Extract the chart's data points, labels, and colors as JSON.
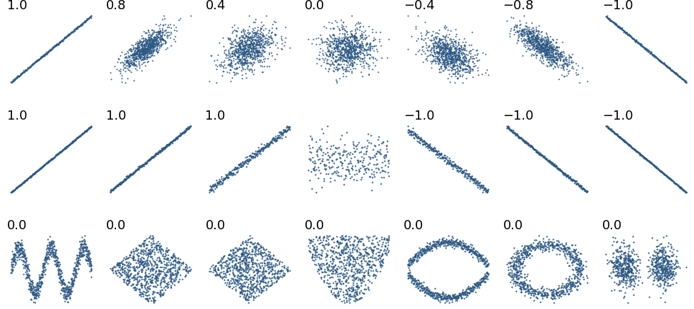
{
  "row1_corrs": [
    1.0,
    0.8,
    0.4,
    0.0,
    -0.4,
    -0.8,
    -1.0
  ],
  "row2_configs": [
    {
      "slope": 3.0,
      "label": "1.0",
      "has_label": true
    },
    {
      "slope": 1.2,
      "label": "1.0",
      "has_label": true
    },
    {
      "slope": 0.4,
      "label": "1.0",
      "has_label": true
    },
    {
      "slope": 0.0,
      "label": "",
      "has_label": false
    },
    {
      "slope": -0.4,
      "label": "-1.0",
      "has_label": true
    },
    {
      "slope": -1.2,
      "label": "-1.0",
      "has_label": true
    },
    {
      "slope": -3.0,
      "label": "-1.0",
      "has_label": true
    }
  ],
  "row3_labels": [
    "0.0",
    "0.0",
    "0.0",
    "0.0",
    "0.0",
    "0.0",
    "0.0"
  ],
  "point_color": "#2a5783",
  "n_points": 800,
  "seed": 42,
  "figsize": [
    9.75,
    4.34
  ],
  "dpi": 100,
  "label_fontsize": 13,
  "marker_size_row1": 2.0,
  "marker_size_row2": 2.5,
  "marker_size_row3": 2.5
}
